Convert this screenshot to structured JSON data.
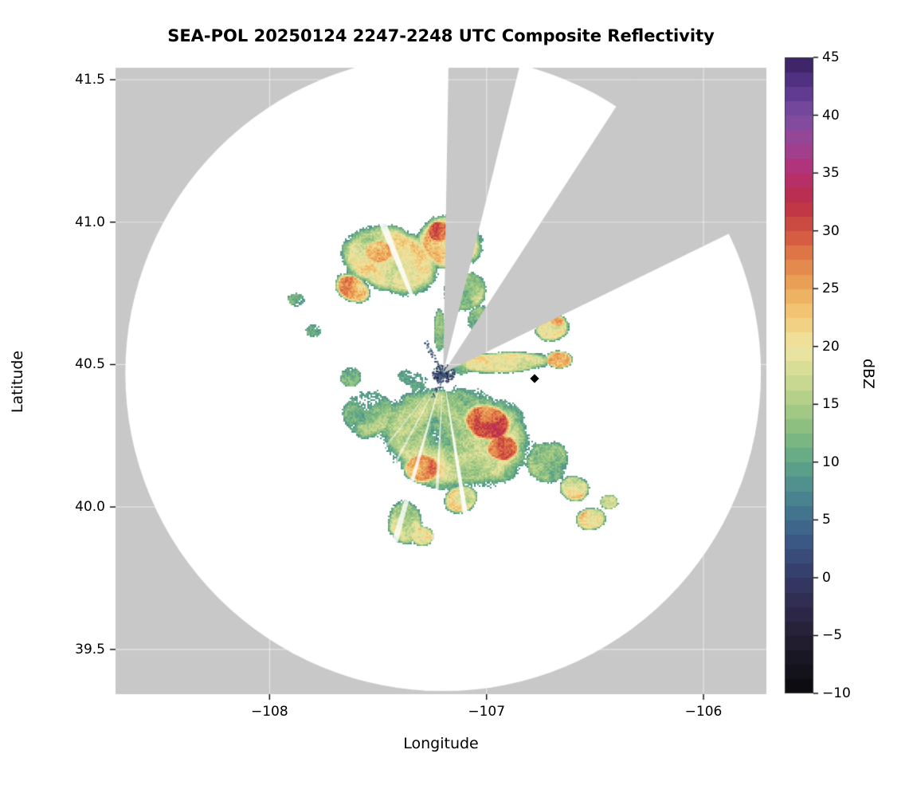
{
  "figure": {
    "background": "#ffffff",
    "plot_background_nodata": "#c8c8c8",
    "plot_background_clear": "#ffffff"
  },
  "chart_data": {
    "type": "heatmap",
    "title": "SEA-POL 20250124 2247-2248 UTC Composite Reflectivity",
    "xlabel": "Longitude",
    "ylabel": "Latitude",
    "units": "dBZ",
    "xlim": [
      -108.71,
      -105.71
    ],
    "ylim": [
      39.343,
      41.542
    ],
    "grid": true,
    "grid_color": "#ffffff",
    "nodata_color": "#c8c8c8",
    "x_ticks": [
      {
        "value": -108,
        "label": "−108"
      },
      {
        "value": -107,
        "label": "−107"
      },
      {
        "value": -106,
        "label": "−106"
      }
    ],
    "y_ticks": [
      {
        "value": 39.5,
        "label": "39.5"
      },
      {
        "value": 40.0,
        "label": "40.0"
      },
      {
        "value": 40.5,
        "label": "40.5"
      },
      {
        "value": 41.0,
        "label": "41.0"
      },
      {
        "value": 41.5,
        "label": "41.5"
      }
    ],
    "colorbar": {
      "label": "dBZ",
      "min": -10,
      "max": 45,
      "ticks": [
        {
          "value": 45,
          "label": "45"
        },
        {
          "value": 40,
          "label": "40"
        },
        {
          "value": 35,
          "label": "35"
        },
        {
          "value": 30,
          "label": "30"
        },
        {
          "value": 25,
          "label": "25"
        },
        {
          "value": 20,
          "label": "20"
        },
        {
          "value": 15,
          "label": "15"
        },
        {
          "value": 10,
          "label": "10"
        },
        {
          "value": 5,
          "label": "5"
        },
        {
          "value": 0,
          "label": "0"
        },
        {
          "value": -5,
          "label": "−5"
        },
        {
          "value": -10,
          "label": "−10"
        }
      ]
    },
    "colormap_stops": [
      [
        -10,
        "#0a0a0c"
      ],
      [
        -7.5,
        "#17141f"
      ],
      [
        -5,
        "#241e33"
      ],
      [
        -2.5,
        "#2e2a4d"
      ],
      [
        0,
        "#353a66"
      ],
      [
        2.5,
        "#39507f"
      ],
      [
        5,
        "#3f6d8e"
      ],
      [
        7.5,
        "#4b8a8f"
      ],
      [
        10,
        "#5fa687"
      ],
      [
        12.5,
        "#83bb80"
      ],
      [
        15,
        "#abcc85"
      ],
      [
        17.5,
        "#d2dc93"
      ],
      [
        20,
        "#efe5a4"
      ],
      [
        22.5,
        "#f2cc79"
      ],
      [
        25,
        "#eda95b"
      ],
      [
        27.5,
        "#e28049"
      ],
      [
        30,
        "#d05340"
      ],
      [
        32.5,
        "#bc2e47"
      ],
      [
        35,
        "#b52f72"
      ],
      [
        37.5,
        "#9c4494"
      ],
      [
        40,
        "#7a4da1"
      ],
      [
        42.5,
        "#58358b"
      ],
      [
        45,
        "#371f5e"
      ]
    ],
    "radar": {
      "lon": -107.2,
      "lat": 40.47,
      "range_deg_lat": 1.116
    },
    "blocked_sectors": [
      {
        "az_start": 1,
        "az_end": 14
      },
      {
        "az_start": 33,
        "az_end": 64
      }
    ],
    "ray_gaps": [
      {
        "az": 338,
        "width_deg": 2.5,
        "alpha": 0.85
      },
      {
        "az": 171,
        "width_deg": 2.0,
        "alpha": 0.9
      },
      {
        "az": 183,
        "width_deg": 1.5,
        "alpha": 0.7
      },
      {
        "az": 196,
        "width_deg": 2.0,
        "alpha": 0.8
      },
      {
        "az": 208,
        "width_deg": 1.5,
        "alpha": 0.6
      },
      {
        "az": 218,
        "width_deg": 1.2,
        "alpha": 0.5
      }
    ],
    "marker": {
      "lon": -106.78,
      "lat": 40.45,
      "shape": "diamond",
      "color": "#000000"
    },
    "clutter": {
      "lon": -107.2,
      "lat": 40.47,
      "radius_deg": 0.04,
      "spokes": [
        {
          "az": 330,
          "len_deg": 0.13
        },
        {
          "az": 205,
          "len_deg": 0.09
        }
      ]
    },
    "echo_region_columns": [
      "lon",
      "lat",
      "rx_deg",
      "ry_deg",
      "rotation_deg",
      "peak_dbz"
    ],
    "echo_regions": [
      [
        -107.45,
        40.87,
        0.26,
        0.13,
        -18,
        19
      ],
      [
        -107.17,
        40.93,
        0.17,
        0.11,
        -10,
        20
      ],
      [
        -107.5,
        40.9,
        0.08,
        0.05,
        0,
        26
      ],
      [
        -107.22,
        40.97,
        0.07,
        0.045,
        0,
        26
      ],
      [
        -107.62,
        40.77,
        0.1,
        0.05,
        -30,
        23
      ],
      [
        -107.1,
        40.76,
        0.12,
        0.08,
        35,
        16
      ],
      [
        -107.03,
        40.66,
        0.08,
        0.06,
        0,
        14
      ],
      [
        -107.88,
        40.73,
        0.05,
        0.03,
        0,
        12
      ],
      [
        -107.8,
        40.62,
        0.045,
        0.03,
        0,
        11
      ],
      [
        -107.22,
        40.62,
        0.03,
        0.1,
        0,
        10
      ],
      [
        -106.7,
        40.63,
        0.09,
        0.05,
        15,
        18
      ],
      [
        -106.68,
        40.655,
        0.04,
        0.025,
        0,
        23
      ],
      [
        -106.92,
        40.51,
        0.25,
        0.042,
        2,
        17
      ],
      [
        -106.67,
        40.52,
        0.07,
        0.035,
        0,
        23
      ],
      [
        -107.12,
        40.49,
        0.05,
        0.03,
        0,
        10
      ],
      [
        -107.15,
        40.25,
        0.4,
        0.21,
        -8,
        15
      ],
      [
        -107.0,
        40.3,
        0.13,
        0.075,
        -15,
        28
      ],
      [
        -106.93,
        40.21,
        0.09,
        0.055,
        0,
        25
      ],
      [
        -107.3,
        40.14,
        0.1,
        0.06,
        0,
        22
      ],
      [
        -107.12,
        40.03,
        0.09,
        0.055,
        20,
        22
      ],
      [
        -107.55,
        40.33,
        0.15,
        0.1,
        25,
        13
      ],
      [
        -107.38,
        39.95,
        0.09,
        0.09,
        0,
        15
      ],
      [
        -107.3,
        39.9,
        0.06,
        0.04,
        0,
        17
      ],
      [
        -106.72,
        40.16,
        0.12,
        0.09,
        0,
        14
      ],
      [
        -106.6,
        40.07,
        0.08,
        0.05,
        -20,
        17
      ],
      [
        -106.52,
        39.96,
        0.08,
        0.045,
        10,
        21
      ],
      [
        -106.44,
        40.02,
        0.05,
        0.03,
        0,
        17
      ],
      [
        -107.63,
        40.46,
        0.06,
        0.045,
        0,
        12
      ],
      [
        -107.32,
        40.44,
        0.12,
        0.04,
        -28,
        9
      ]
    ]
  }
}
